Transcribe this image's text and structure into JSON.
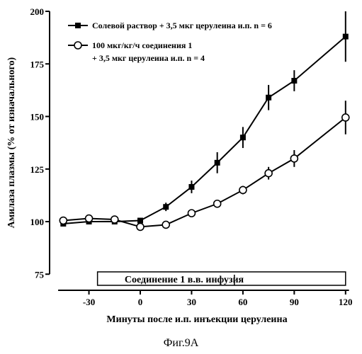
{
  "chart_data": {
    "type": "line",
    "title": "",
    "xlabel": "Минуты после и.п. инъекции церулеина",
    "ylabel": "Амилаза плазмы (% от изначального)",
    "xlim": [
      -48,
      122
    ],
    "ylim": [
      75,
      200
    ],
    "x_ticks": [
      -30,
      0,
      30,
      60,
      90,
      120
    ],
    "x_tick_labels": [
      "-30",
      "0",
      "30",
      "60",
      "90",
      "120"
    ],
    "y_ticks": [
      75,
      100,
      125,
      150,
      175,
      200
    ],
    "y_tick_labels": [
      "75",
      "100",
      "125",
      "150",
      "175",
      "200"
    ],
    "grid": false,
    "legend_position": "top-left",
    "series": [
      {
        "name": "Солевой раствор + 3,5 мкг церулеина и.п. n = 6",
        "marker": "filled-square",
        "x": [
          -45,
          -30,
          -15,
          0,
          15,
          30,
          45,
          60,
          75,
          90,
          120
        ],
        "y": [
          99,
          100,
          100,
          100.5,
          107,
          116.5,
          128,
          140,
          159,
          167,
          188
        ],
        "error": [
          0,
          0,
          0,
          0,
          2,
          3,
          5,
          5,
          6,
          5,
          12
        ]
      },
      {
        "name": "100 мкг/кг/ч соединения 1 + 3,5 мкг церулеина и.п. n = 4",
        "marker": "open-circle",
        "x": [
          -45,
          -30,
          -15,
          0,
          15,
          30,
          45,
          60,
          75,
          90,
          120
        ],
        "y": [
          100.5,
          101.5,
          101,
          97.5,
          98.5,
          104,
          108.5,
          115,
          123,
          130,
          149.5
        ],
        "error": [
          0,
          0,
          0,
          0,
          0,
          0,
          0,
          2,
          3,
          4,
          8
        ]
      }
    ],
    "legend_lines": [
      [
        "Солевой раствор + 3,5 мкг церулеина и.п. n = 6"
      ],
      [
        "100 мкг/кг/ч соединения 1",
        "+ 3,5 мкг церулеина и.п. n = 4"
      ]
    ],
    "infusion_bar": {
      "label": "Соединение 1  в.в. инфузия",
      "x_start": -25,
      "x_end": 120,
      "marker_x": 55
    }
  },
  "caption": "Фиг.9А"
}
